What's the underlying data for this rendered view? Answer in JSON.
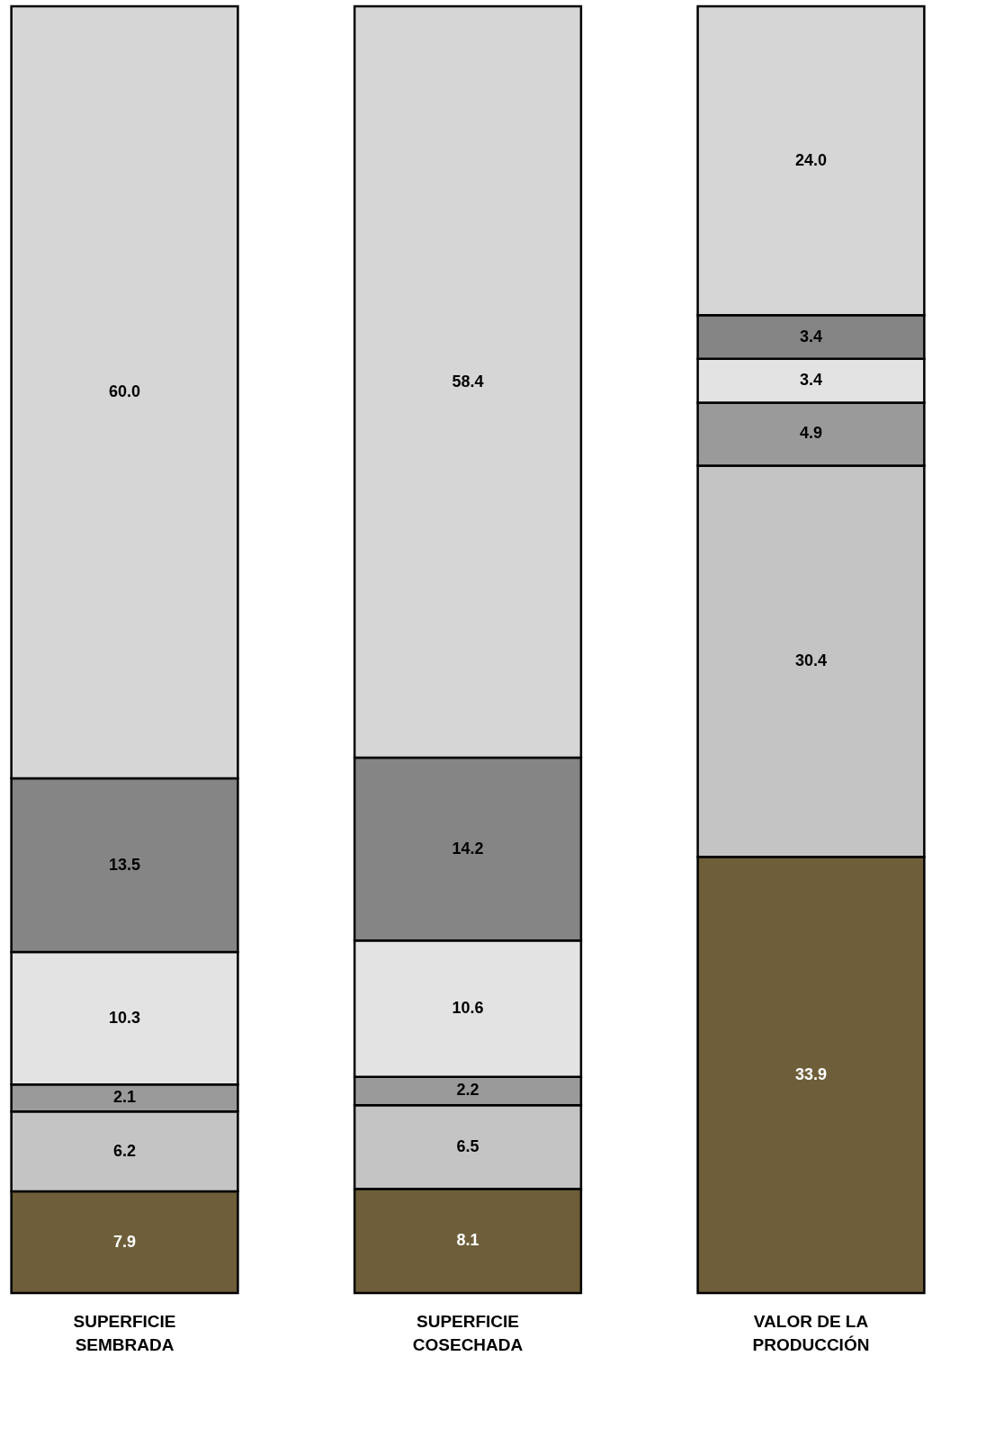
{
  "chart_data": {
    "type": "bar",
    "stacked": true,
    "categories": [
      "SUPERFICIE\nSEMBRADA",
      "SUPERFICIE\nCOSECHADA",
      "VALOR DE LA\nPRODUCCIÓN"
    ],
    "series": [
      {
        "color": "#6e5f3a",
        "values": [
          7.9,
          8.1,
          33.9
        ],
        "value_labels": [
          "7.9",
          "8.1",
          "33.9"
        ]
      },
      {
        "color": "#c4c4c4",
        "values": [
          6.2,
          6.5,
          30.4
        ],
        "value_labels": [
          "6.2",
          "6.5",
          "30.4"
        ]
      },
      {
        "color": "#9a9a9a",
        "values": [
          2.1,
          2.2,
          4.9
        ],
        "value_labels": [
          "2.1",
          "2.2",
          "4.9"
        ]
      },
      {
        "color": "#e3e3e3",
        "values": [
          10.3,
          10.6,
          3.4
        ],
        "value_labels": [
          "10.3",
          "10.6",
          "3.4"
        ]
      },
      {
        "color": "#858585",
        "values": [
          13.5,
          14.2,
          3.4
        ],
        "value_labels": [
          "13.5",
          "14.2",
          "3.4"
        ]
      },
      {
        "color": "#d6d6d6",
        "values": [
          60.0,
          58.4,
          24.0
        ],
        "value_labels": [
          "60.0",
          "58.4",
          "24.0"
        ]
      }
    ]
  }
}
